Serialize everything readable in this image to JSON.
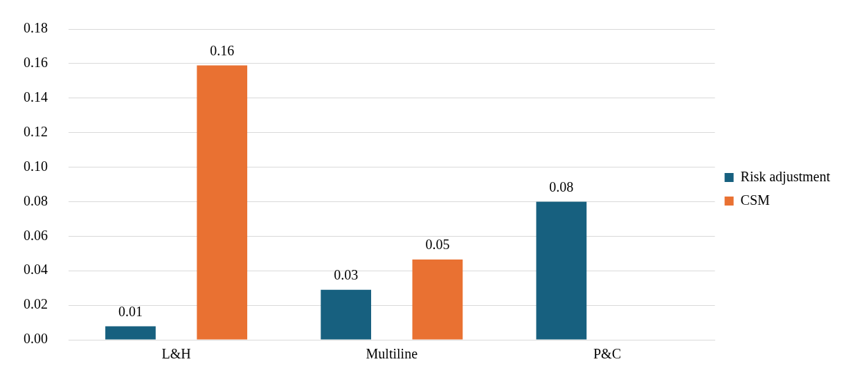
{
  "chart_data": {
    "type": "bar",
    "categories": [
      "L&H",
      "Multiline",
      "P&C"
    ],
    "series": [
      {
        "name": "Risk adjustment",
        "color": "#17607f",
        "values": [
          0.0078,
          0.029,
          0.08
        ],
        "value_labels": [
          "0.01",
          "0.03",
          "0.08"
        ]
      },
      {
        "name": "CSM",
        "color": "#e97132",
        "values": [
          0.159,
          0.0465,
          null
        ],
        "value_labels": [
          "0.16",
          "0.05",
          null
        ]
      }
    ],
    "ylim": [
      0,
      0.18
    ],
    "yticks": [
      {
        "value": 0,
        "label": "0.00"
      },
      {
        "value": 0.02,
        "label": "0.02"
      },
      {
        "value": 0.04,
        "label": "0.04"
      },
      {
        "value": 0.06,
        "label": "0.06"
      },
      {
        "value": 0.08,
        "label": "0.08"
      },
      {
        "value": 0.1,
        "label": "0.10"
      },
      {
        "value": 0.12,
        "label": "0.12"
      },
      {
        "value": 0.14,
        "label": "0.14"
      },
      {
        "value": 0.16,
        "label": "0.16"
      },
      {
        "value": 0.18,
        "label": "0.18"
      }
    ],
    "grid": "y",
    "legend": "right"
  }
}
